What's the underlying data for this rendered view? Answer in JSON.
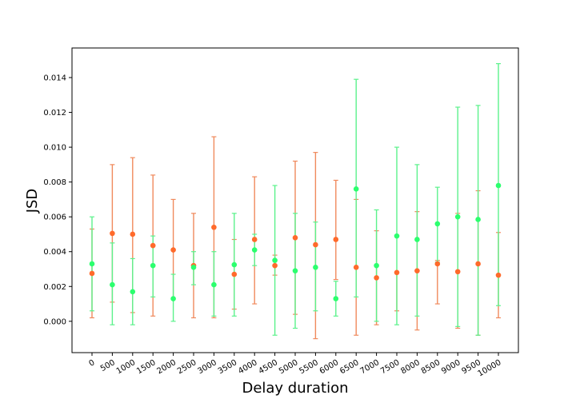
{
  "chart_data": {
    "type": "scatter",
    "title": "",
    "xlabel": "Delay duration",
    "ylabel": "JSD",
    "ylim": [
      -0.0018,
      0.0157
    ],
    "categories": [
      "0",
      "500",
      "1000",
      "1500",
      "2000",
      "2500",
      "3000",
      "3500",
      "4000",
      "4500",
      "5000",
      "5500",
      "6000",
      "6500",
      "7000",
      "7500",
      "8000",
      "8500",
      "9000",
      "9500",
      "10000"
    ],
    "yticks": [
      0.0,
      0.002,
      0.004,
      0.006,
      0.008,
      0.01,
      0.012,
      0.014
    ],
    "ytick_labels": [
      "0.000",
      "0.002",
      "0.004",
      "0.006",
      "0.008",
      "0.010",
      "0.012",
      "0.014"
    ],
    "grid": false,
    "legend": "none",
    "series": [
      {
        "color": "#ff6a2b",
        "errorbar_color": "#f08a5d",
        "values": [
          0.00275,
          0.00505,
          0.005,
          0.00435,
          0.0041,
          0.0032,
          0.0054,
          0.0027,
          0.0047,
          0.0032,
          0.0048,
          0.0044,
          0.0047,
          0.0031,
          0.0025,
          0.0028,
          0.0029,
          0.0033,
          0.00285,
          0.0033,
          0.00265
        ],
        "lower": [
          0.0002,
          0.0011,
          0.0005,
          0.0003,
          0.0013,
          0.0002,
          0.0002,
          0.0007,
          0.001,
          0.00265,
          0.0004,
          -0.001,
          0.0024,
          -0.0008,
          -0.0002,
          0.0006,
          -0.0005,
          0.001,
          -0.0004,
          -0.0008,
          0.0002
        ],
        "upper": [
          0.0053,
          0.009,
          0.0094,
          0.0084,
          0.007,
          0.0062,
          0.0106,
          0.0047,
          0.0083,
          0.0038,
          0.0092,
          0.0097,
          0.0081,
          0.007,
          0.0052,
          0.0028,
          0.0063,
          0.0035,
          0.0062,
          0.0075,
          0.0051
        ]
      },
      {
        "color": "#2bff6e",
        "errorbar_color": "#5cf28c",
        "values": [
          0.0033,
          0.0021,
          0.0017,
          0.0032,
          0.0013,
          0.0031,
          0.0021,
          0.00325,
          0.0041,
          0.0035,
          0.0029,
          0.0031,
          0.0013,
          0.0076,
          0.0032,
          0.0049,
          0.0047,
          0.0056,
          0.006,
          0.00585,
          0.0078
        ],
        "lower": [
          0.0006,
          -0.0002,
          -0.0002,
          0.0014,
          0.0,
          0.0021,
          0.0003,
          0.0003,
          0.0032,
          -0.0008,
          -0.0004,
          0.0006,
          0.0003,
          0.0014,
          0.0,
          -0.0002,
          0.0003,
          0.0034,
          -0.0003,
          -0.0008,
          0.0009
        ],
        "upper": [
          0.006,
          0.0045,
          0.0036,
          0.0049,
          0.0027,
          0.004,
          0.004,
          0.0062,
          0.005,
          0.0078,
          0.0062,
          0.0057,
          0.0023,
          0.0139,
          0.0064,
          0.01,
          0.009,
          0.0077,
          0.0123,
          0.0124,
          0.0148
        ]
      }
    ]
  }
}
